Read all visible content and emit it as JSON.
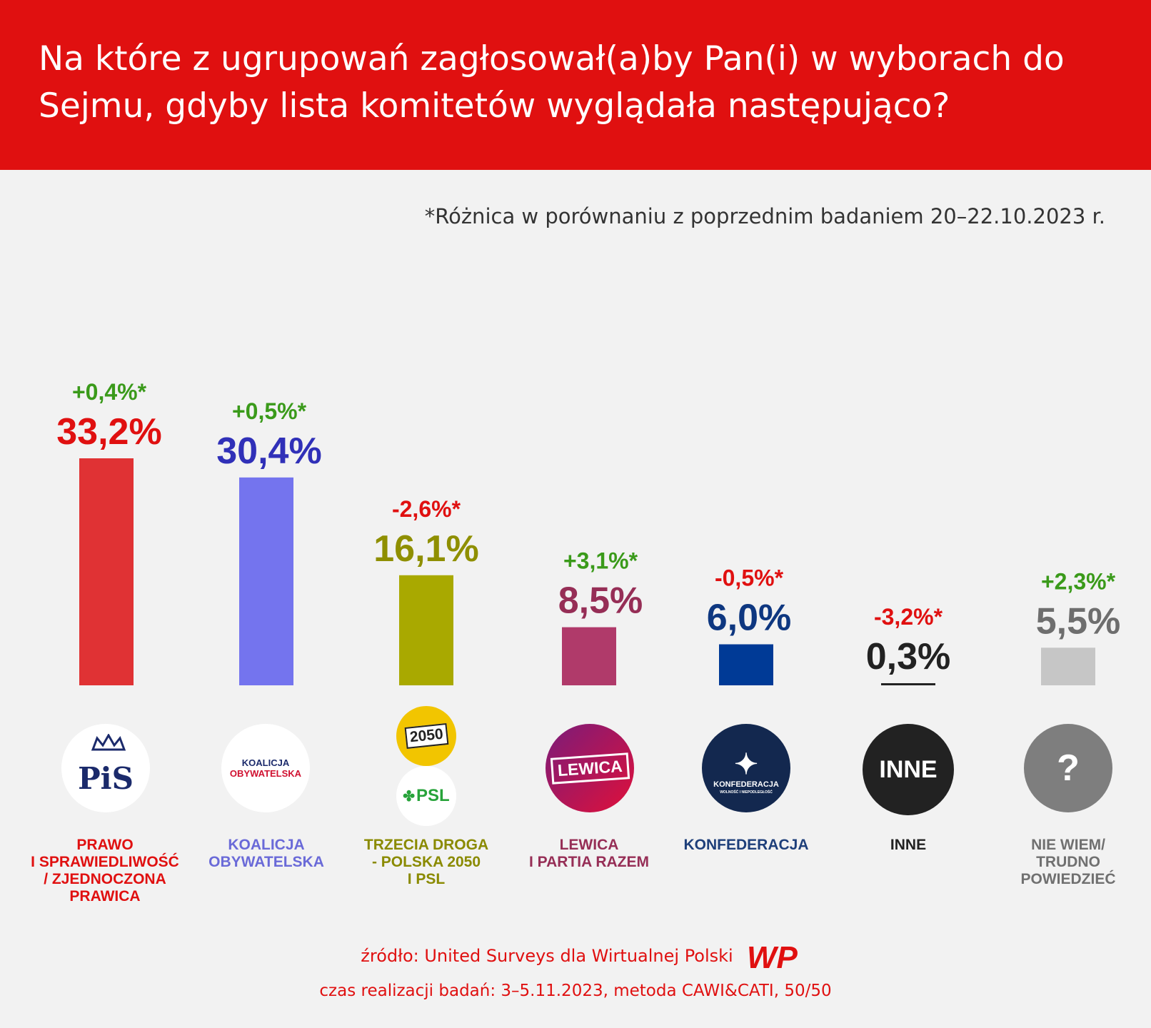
{
  "title": "Na które z ugrupowań zagłosował(a)by Pan(i) w wyborach do Sejmu, gdyby lista komitetów wyglądała następująco?",
  "subtitle": "*Różnica w porównaniu z poprzednim badaniem 20–22.10.2023 r.",
  "footer": {
    "source": "źródło: United Surveys dla Wirtualnej Polski",
    "method": "czas realizacji badań: 3–5.11.2023, metoda CAWI&CATI, 50/50",
    "brand": "WP"
  },
  "logos": {
    "pis": "PiS",
    "ko_line1": "KOALICJA",
    "ko_line2": "OBYWATELSKA",
    "p2050": "2050",
    "psl": "PSL",
    "lewica": "LEWICA",
    "konfederacja": "KONFEDERACJA",
    "konfederacja_sub": "WOLNOŚĆ I NIEPODLEGŁOŚĆ",
    "inne": "INNE",
    "unknown": "?"
  },
  "chart_data": {
    "type": "bar",
    "title": "Na które z ugrupowań zagłosował(a)by Pan(i) w wyborach do Sejmu, gdyby lista komitetów wyglądała następująco?",
    "unit": "%",
    "categories": [
      "PRAWO I SPRAWIEDLIWOŚĆ / ZJEDNOCZONA PRAWICA",
      "KOALICJA OBYWATELSKA",
      "TRZECIA DROGA - POLSKA 2050 I PSL",
      "LEWICA I PARTIA RAZEM",
      "KONFEDERACJA",
      "INNE",
      "NIE WIEM/ TRUDNO POWIEDZIEĆ"
    ],
    "values": [
      33.2,
      30.4,
      16.1,
      8.5,
      6.0,
      0.3,
      5.5
    ],
    "value_labels": [
      "33,2%",
      "30,4%",
      "16,1%",
      "8,5%",
      "6,0%",
      "0,3%",
      "5,5%"
    ],
    "changes": [
      0.4,
      0.5,
      -2.6,
      3.1,
      -0.5,
      -3.2,
      2.3
    ],
    "change_labels": [
      "+0,4%*",
      "+0,5%*",
      "-2,6%*",
      "+3,1%*",
      "-0,5%*",
      "-3,2%*",
      "+2,3%*"
    ],
    "bar_colors": [
      "#e03234",
      "#7474ee",
      "#a9a900",
      "#b03a6a",
      "#003a96",
      "#222222",
      "#c6c6c6"
    ],
    "value_colors": [
      "#e01010",
      "#3030b8",
      "#8f8f00",
      "#962e56",
      "#0e3780",
      "#222222",
      "#6e6e6e"
    ],
    "label_lines": [
      [
        "PRAWO",
        "I SPRAWIEDLIWOŚĆ",
        "/ ZJEDNOCZONA",
        "PRAWICA"
      ],
      [
        "KOALICJA",
        "OBYWATELSKA"
      ],
      [
        "TRZECIA DROGA",
        "- POLSKA 2050",
        "I PSL"
      ],
      [
        "LEWICA",
        "I PARTIA RAZEM"
      ],
      [
        "KONFEDERACJA"
      ],
      [
        "INNE"
      ],
      [
        "NIE WIEM/",
        "TRUDNO",
        "POWIEDZIEĆ"
      ]
    ],
    "label_colors": [
      "#e01010",
      "#6a6ad8",
      "#8a8a00",
      "#962e56",
      "#1e3f7a",
      "#222222",
      "#707070"
    ],
    "positive_color": "#3a9a1a",
    "negative_color": "#e01010",
    "ylim": [
      0,
      33.2
    ]
  }
}
